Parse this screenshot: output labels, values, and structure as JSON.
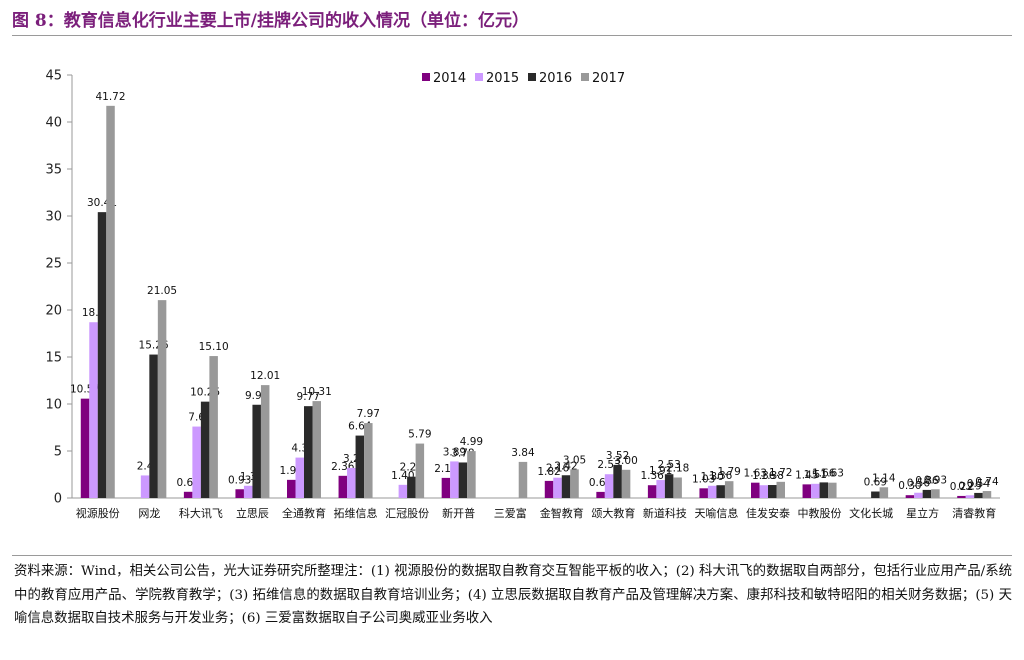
{
  "title": "图 8：教育信息化行业主要上市/挂牌公司的收入情况（单位：亿元）",
  "source_note": "资料来源：Wind，相关公司公告，光大证券研究所整理注：(1) 视源股份的数据取自教育交互智能平板的收入；(2) 科大讯飞的数据取自两部分，包括行业应用产品/系统中的教育应用产品、学院教育教学；(3) 拓维信息的数据取自教育培训业务；(4) 立思辰数据取自教育产品及管理解决方案、康邦科技和敏特昭阳的相关财务数据；(5) 天喻信息数据取自技术服务与开发业务；(6) 三爱富数据取自子公司奥威亚业务收入",
  "colors": {
    "title": "#7b1f7b",
    "s2014": "#7f007f",
    "s2015": "#cc99ff",
    "s2016": "#2a2a2a",
    "s2017": "#999999"
  },
  "chart_data": {
    "type": "bar",
    "title": "",
    "xlabel": "",
    "ylabel": "",
    "ylim": [
      0,
      45
    ],
    "yticks": [
      0,
      5,
      10,
      15,
      20,
      25,
      30,
      35,
      40,
      45
    ],
    "legend_position": "top-center",
    "categories": [
      "视源股份",
      "网龙",
      "科大讯飞",
      "立思辰",
      "全通教育",
      "拓维信息",
      "汇冠股份",
      "新开普",
      "三爱富",
      "金智教育",
      "颂大教育",
      "新道科技",
      "天喻信息",
      "佳发安泰",
      "中教股份",
      "文化长城",
      "星立方",
      "清睿教育"
    ],
    "series": [
      {
        "name": "2014",
        "values": [
          10.57,
          null,
          0.66,
          0.93,
          1.93,
          2.36,
          null,
          2.14,
          null,
          1.82,
          0.65,
          1.36,
          1.03,
          1.63,
          1.45,
          null,
          0.3,
          0.22
        ]
      },
      {
        "name": "2015",
        "values": [
          18.7,
          2.4,
          7.6,
          1.3,
          4.3,
          3.2,
          1.4,
          3.89,
          null,
          2.16,
          2.53,
          1.91,
          1.3,
          1.36,
          1.51,
          null,
          0.56,
          0.29
        ]
      },
      {
        "name": "2016",
        "values": [
          30.41,
          15.26,
          10.25,
          9.92,
          9.77,
          6.64,
          2.27,
          3.78,
          null,
          2.42,
          3.52,
          2.53,
          1.36,
          1.38,
          1.66,
          0.69,
          0.86,
          0.54
        ]
      },
      {
        "name": "2017",
        "values": [
          41.72,
          21.05,
          15.1,
          12.01,
          10.31,
          7.97,
          5.79,
          4.99,
          3.84,
          3.05,
          3.0,
          2.18,
          1.79,
          1.72,
          1.63,
          1.14,
          0.93,
          0.74
        ]
      }
    ],
    "labels": [
      [
        "10.57",
        null,
        "0.66",
        "0.93",
        "1.93",
        "2.36",
        null,
        "2.14",
        null,
        "1.82",
        "0.65",
        "1.36",
        "1.03",
        "1.63",
        "1.45",
        null,
        "0.30",
        "0.22"
      ],
      [
        "18.7",
        "2.4",
        "7.6",
        "1.3",
        "4.3",
        "3.2",
        "1.40",
        "3.89",
        null,
        "2.16",
        "2.53",
        "1.91",
        "1.30",
        "1.36",
        "1.51",
        null,
        "0.56",
        "0.29"
      ],
      [
        "30.41",
        "15.26",
        "10.25",
        "9.92",
        "9.77",
        "6.64",
        "2.27",
        "3.78",
        null,
        "2.42",
        "3.52",
        "2.53",
        "1.36",
        "1.38",
        "1.66",
        "0.69",
        "0.86",
        "0.54"
      ],
      [
        "41.72",
        "21.05",
        "15.10",
        "12.01",
        "10.31",
        "7.97",
        "5.79",
        "4.99",
        "3.84",
        "3.05",
        "3.00",
        "2.18",
        "1.79",
        "1.72",
        "1.63",
        "1.14",
        "0.93",
        "0.74"
      ]
    ]
  }
}
